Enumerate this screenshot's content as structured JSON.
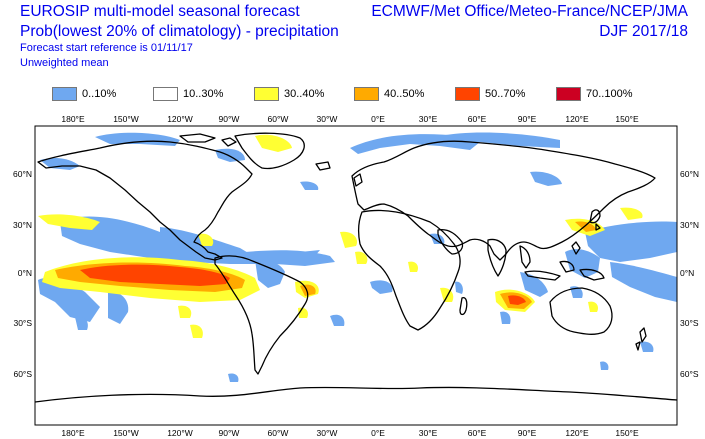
{
  "header": {
    "title_line1": "EUROSIP multi-model seasonal forecast",
    "title_line2": "Prob(lowest 20% of climatology) - precipitation",
    "forecast_start": "Forecast start reference is 01/11/17",
    "weighting": "Unweighted mean",
    "centres": "ECMWF/Met Office/Meteo-France/NCEP/JMA",
    "season": "DJF 2017/18"
  },
  "legend": [
    {
      "label": "0..10%",
      "color": "#6fa8f0"
    },
    {
      "label": "10..30%",
      "color": "#ffffff"
    },
    {
      "label": "30..40%",
      "color": "#ffff33"
    },
    {
      "label": "40..50%",
      "color": "#ffaa00"
    },
    {
      "label": "50..70%",
      "color": "#ff4400"
    },
    {
      "label": "70..100%",
      "color": "#cc0022"
    }
  ],
  "axes": {
    "lon_labels": [
      "180°E",
      "150°W",
      "120°W",
      "90°W",
      "60°W",
      "30°W",
      "0°E",
      "30°E",
      "60°E",
      "90°E",
      "120°E",
      "150°E"
    ],
    "lat_labels_left": [
      "60°N",
      "30°N",
      "0°N",
      "30°S",
      "60°S"
    ],
    "lat_labels_right": [
      "60°N",
      "30°N",
      "0°N",
      "30°S",
      "60°S"
    ]
  }
}
